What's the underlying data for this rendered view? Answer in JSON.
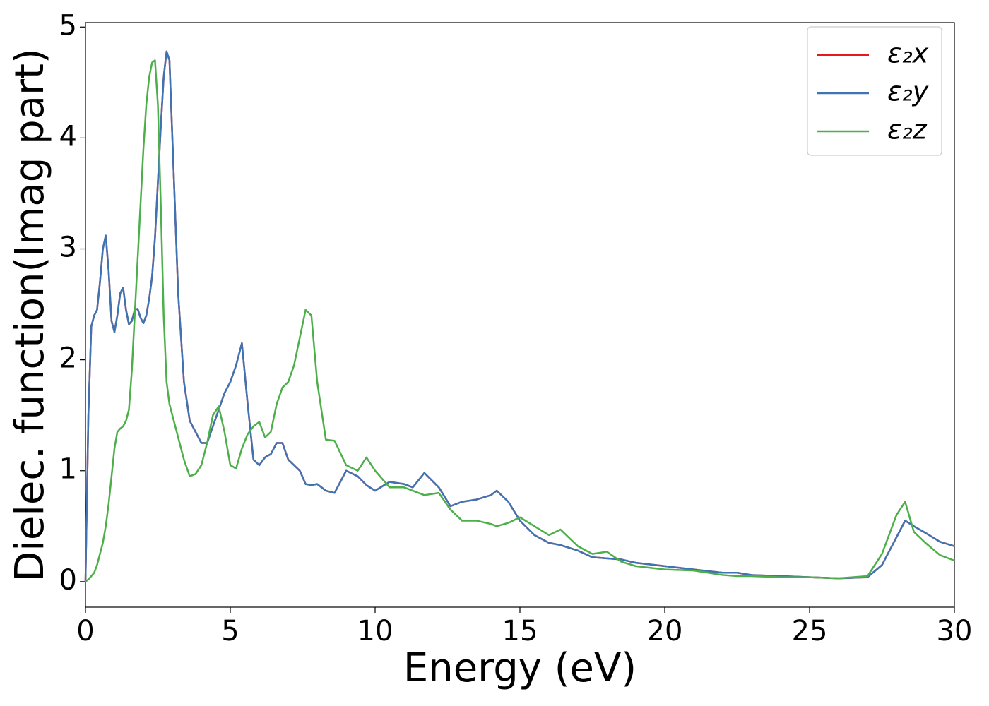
{
  "chart_data": {
    "type": "line",
    "xlabel": "Energy (eV)",
    "ylabel": "Dielec. function(Imag part)",
    "x": [
      0,
      0.1,
      0.2,
      0.3,
      0.4,
      0.5,
      0.6,
      0.7,
      0.8,
      0.9,
      1.0,
      1.1,
      1.2,
      1.3,
      1.4,
      1.5,
      1.6,
      1.7,
      1.8,
      1.9,
      2.0,
      2.1,
      2.2,
      2.3,
      2.4,
      2.5,
      2.6,
      2.7,
      2.8,
      2.9,
      3.0,
      3.2,
      3.4,
      3.6,
      3.8,
      4.0,
      4.2,
      4.4,
      4.6,
      4.8,
      5.0,
      5.2,
      5.4,
      5.6,
      5.8,
      6.0,
      6.2,
      6.4,
      6.6,
      6.8,
      7.0,
      7.2,
      7.4,
      7.6,
      7.8,
      8.0,
      8.3,
      8.6,
      9.0,
      9.4,
      9.7,
      10.0,
      10.5,
      11.0,
      11.3,
      11.7,
      12.2,
      12.6,
      13.0,
      13.5,
      14.0,
      14.2,
      14.6,
      15.0,
      15.5,
      16.0,
      16.4,
      17.0,
      17.5,
      18.0,
      18.5,
      19.0,
      20.0,
      21.0,
      22.0,
      22.5,
      23.0,
      24.0,
      25.0,
      26.0,
      27.0,
      27.5,
      28.0,
      28.3,
      28.6,
      29.0,
      29.5,
      30.0
    ],
    "series": [
      {
        "name": "ε₂x",
        "color": "#e41a1c",
        "values": [
          0.0,
          1.5,
          2.3,
          2.4,
          2.45,
          2.7,
          3.0,
          3.12,
          2.8,
          2.35,
          2.25,
          2.4,
          2.6,
          2.65,
          2.45,
          2.32,
          2.35,
          2.45,
          2.46,
          2.38,
          2.33,
          2.4,
          2.55,
          2.75,
          3.1,
          3.6,
          4.1,
          4.55,
          4.78,
          4.7,
          4.0,
          2.6,
          1.8,
          1.45,
          1.35,
          1.25,
          1.25,
          1.4,
          1.55,
          1.7,
          1.8,
          1.95,
          2.15,
          1.6,
          1.1,
          1.05,
          1.12,
          1.15,
          1.25,
          1.25,
          1.1,
          1.05,
          1.0,
          0.88,
          0.87,
          0.88,
          0.82,
          0.8,
          1.0,
          0.95,
          0.87,
          0.82,
          0.9,
          0.88,
          0.85,
          0.98,
          0.85,
          0.68,
          0.72,
          0.74,
          0.78,
          0.82,
          0.72,
          0.55,
          0.42,
          0.35,
          0.33,
          0.28,
          0.22,
          0.21,
          0.2,
          0.17,
          0.14,
          0.11,
          0.08,
          0.08,
          0.06,
          0.05,
          0.04,
          0.03,
          0.04,
          0.15,
          0.4,
          0.55,
          0.5,
          0.44,
          0.36,
          0.32
        ]
      },
      {
        "name": "ε₂y",
        "color": "#3f74b4",
        "values": [
          0.0,
          1.5,
          2.3,
          2.4,
          2.45,
          2.7,
          3.0,
          3.12,
          2.8,
          2.35,
          2.25,
          2.4,
          2.6,
          2.65,
          2.45,
          2.32,
          2.35,
          2.45,
          2.46,
          2.38,
          2.33,
          2.4,
          2.55,
          2.75,
          3.1,
          3.6,
          4.1,
          4.55,
          4.78,
          4.7,
          4.0,
          2.6,
          1.8,
          1.45,
          1.35,
          1.25,
          1.25,
          1.4,
          1.55,
          1.7,
          1.8,
          1.95,
          2.15,
          1.6,
          1.1,
          1.05,
          1.12,
          1.15,
          1.25,
          1.25,
          1.1,
          1.05,
          1.0,
          0.88,
          0.87,
          0.88,
          0.82,
          0.8,
          1.0,
          0.95,
          0.87,
          0.82,
          0.9,
          0.88,
          0.85,
          0.98,
          0.85,
          0.68,
          0.72,
          0.74,
          0.78,
          0.82,
          0.72,
          0.55,
          0.42,
          0.35,
          0.33,
          0.28,
          0.22,
          0.21,
          0.2,
          0.17,
          0.14,
          0.11,
          0.08,
          0.08,
          0.06,
          0.05,
          0.04,
          0.03,
          0.04,
          0.15,
          0.4,
          0.55,
          0.5,
          0.44,
          0.36,
          0.32
        ]
      },
      {
        "name": "ε₂z",
        "color": "#4daf4a",
        "values": [
          0.0,
          0.02,
          0.05,
          0.08,
          0.15,
          0.25,
          0.35,
          0.5,
          0.7,
          0.95,
          1.2,
          1.35,
          1.38,
          1.4,
          1.45,
          1.55,
          1.9,
          2.4,
          2.9,
          3.4,
          3.9,
          4.3,
          4.55,
          4.68,
          4.7,
          4.3,
          3.4,
          2.4,
          1.8,
          1.6,
          1.5,
          1.3,
          1.1,
          0.95,
          0.97,
          1.05,
          1.25,
          1.5,
          1.58,
          1.35,
          1.05,
          1.02,
          1.2,
          1.33,
          1.4,
          1.44,
          1.3,
          1.35,
          1.6,
          1.75,
          1.8,
          1.95,
          2.2,
          2.45,
          2.4,
          1.8,
          1.28,
          1.27,
          1.05,
          1.0,
          1.12,
          1.0,
          0.85,
          0.85,
          0.82,
          0.78,
          0.8,
          0.65,
          0.55,
          0.55,
          0.52,
          0.5,
          0.53,
          0.58,
          0.5,
          0.42,
          0.47,
          0.32,
          0.25,
          0.27,
          0.18,
          0.14,
          0.11,
          0.1,
          0.06,
          0.05,
          0.05,
          0.04,
          0.04,
          0.03,
          0.05,
          0.25,
          0.6,
          0.72,
          0.45,
          0.35,
          0.24,
          0.19
        ]
      }
    ],
    "xlim": [
      0,
      30
    ],
    "xticks": [
      0,
      5,
      10,
      15,
      20,
      25,
      30
    ],
    "ylim": [
      -0.23,
      5.04
    ],
    "yticks": [
      0,
      1,
      2,
      3,
      4,
      5
    ],
    "legend": "upper right",
    "grid": false
  }
}
